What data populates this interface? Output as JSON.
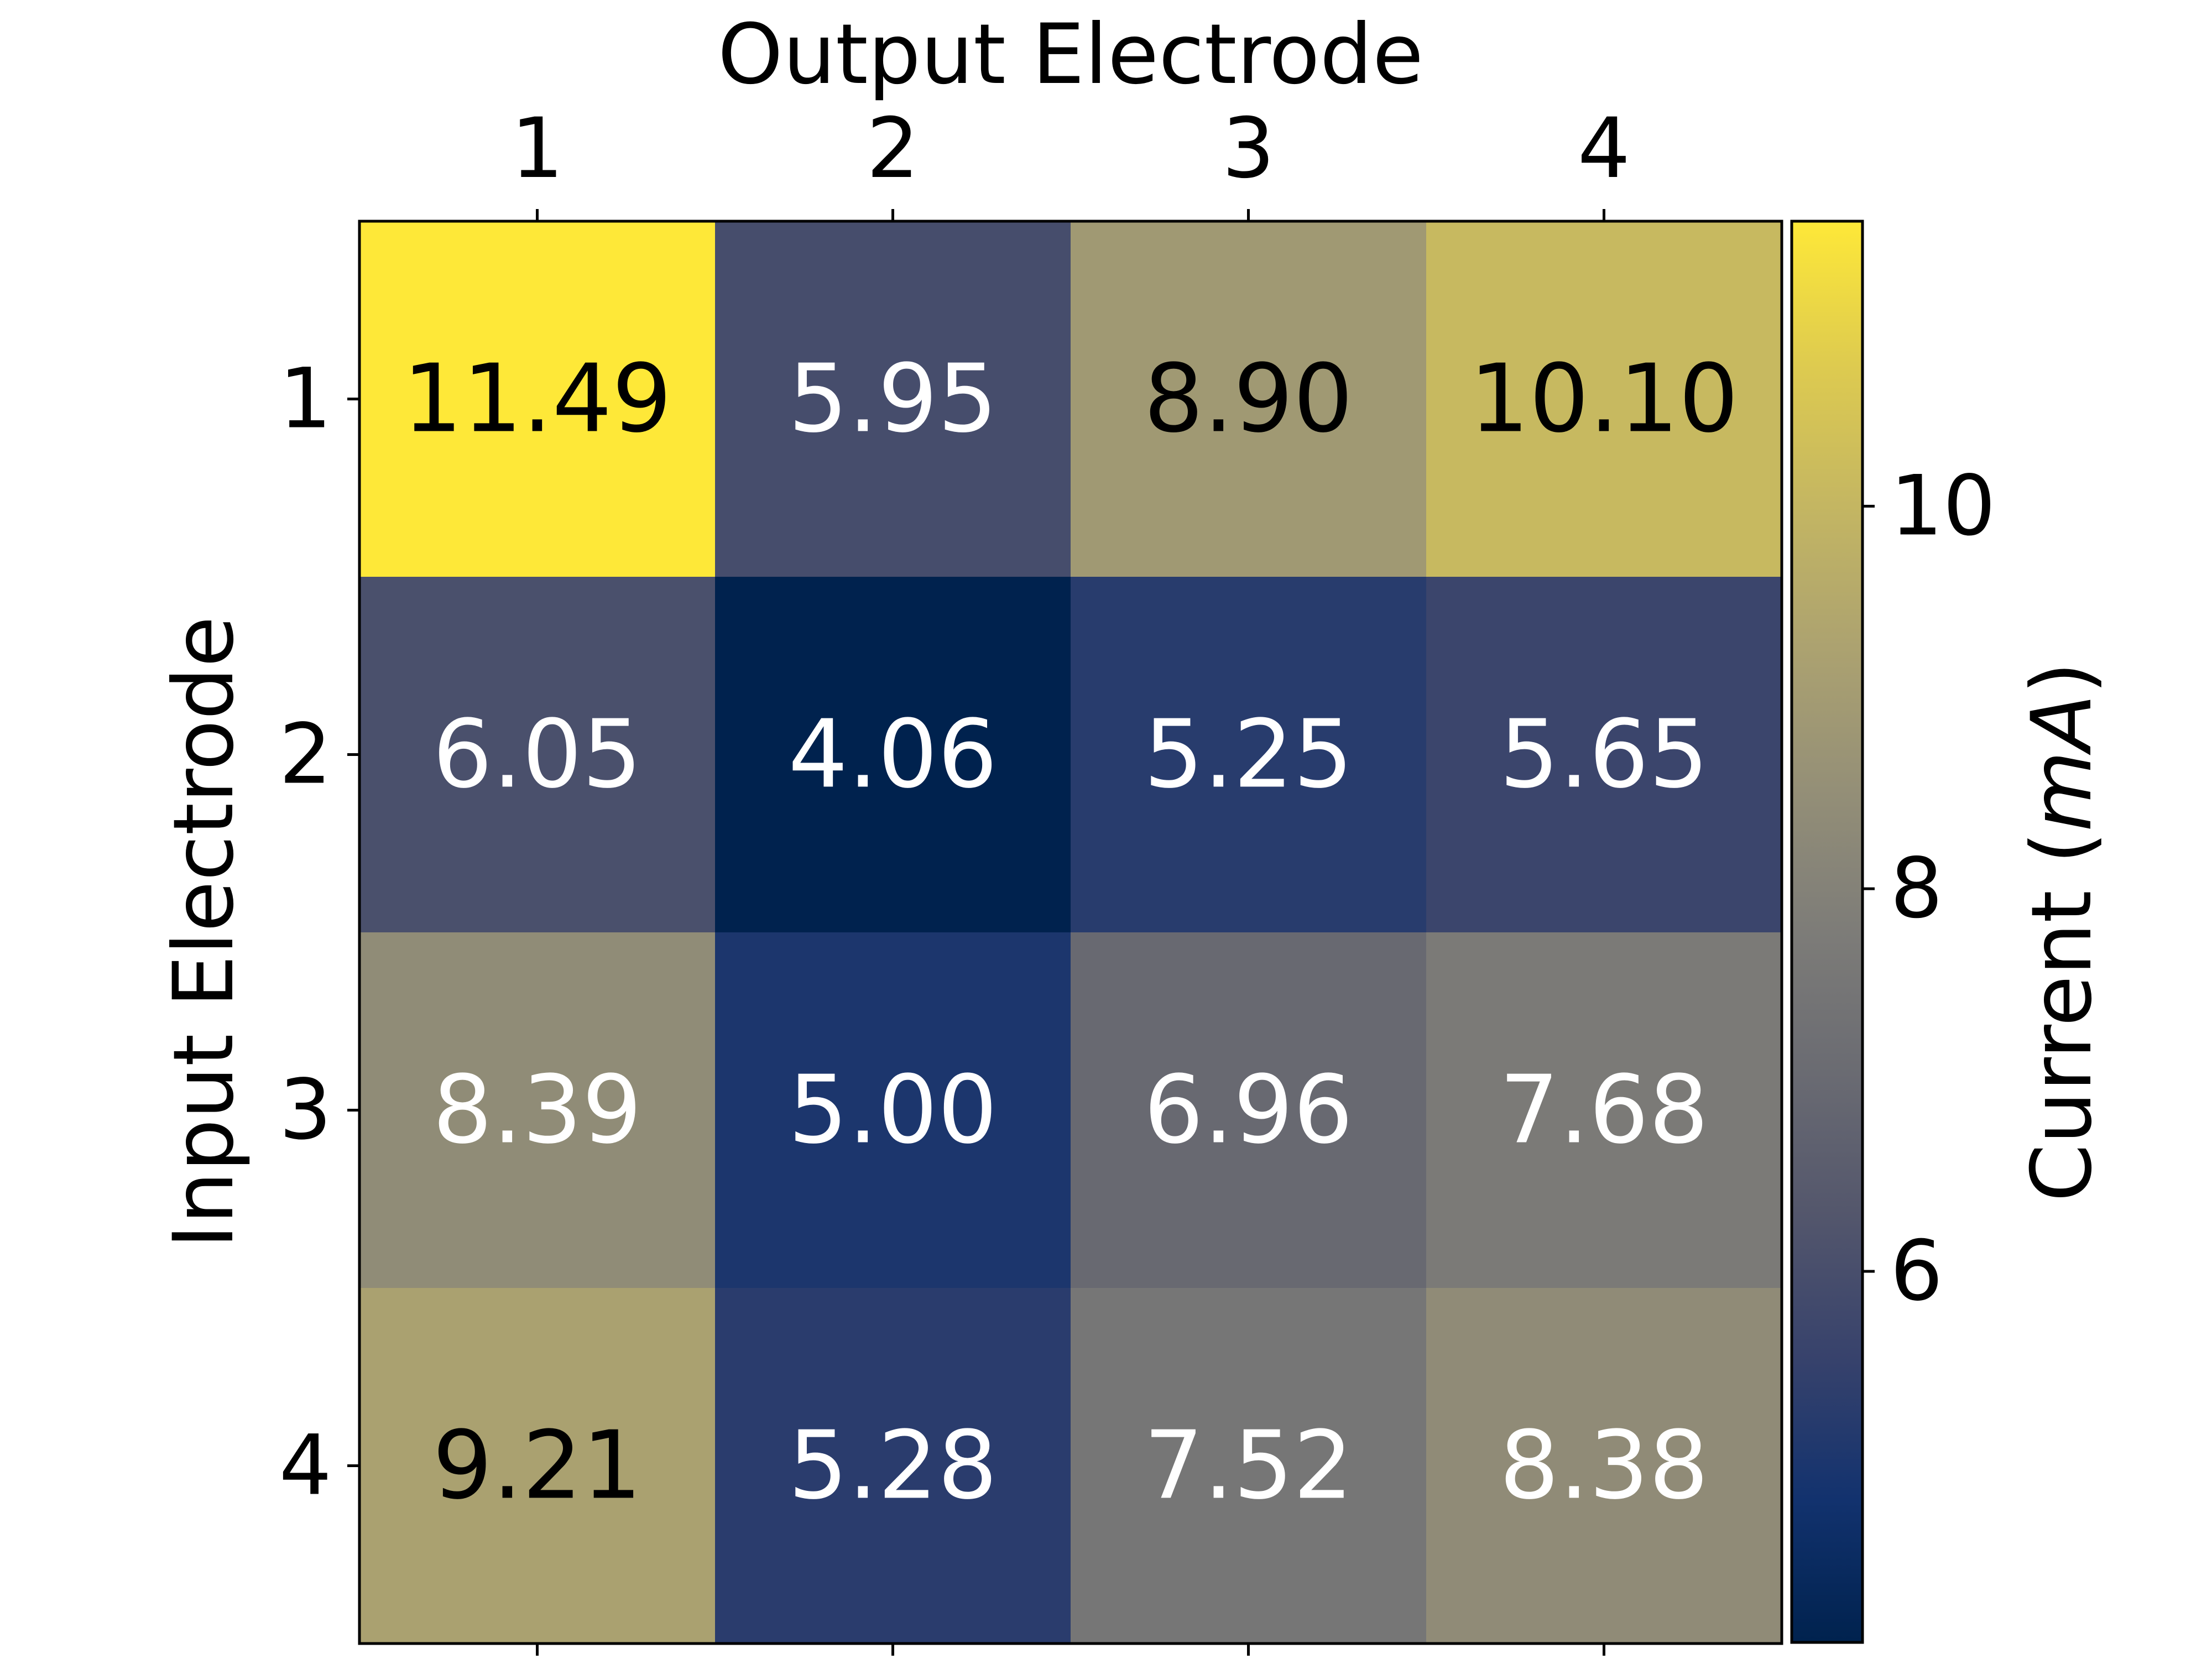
{
  "chart_data": {
    "type": "heatmap",
    "title": "",
    "xlabel": "Output Electrode",
    "ylabel": "Input Electrode",
    "x_categories": [
      "1",
      "2",
      "3",
      "4"
    ],
    "y_categories": [
      "1",
      "2",
      "3",
      "4"
    ],
    "values": [
      [
        11.49,
        5.95,
        8.9,
        10.1
      ],
      [
        6.05,
        4.06,
        5.25,
        5.65
      ],
      [
        8.39,
        5.0,
        6.96,
        7.68
      ],
      [
        9.21,
        5.28,
        7.52,
        8.38
      ]
    ],
    "cell_labels": [
      [
        "11.49",
        "5.95",
        "8.90",
        "10.10"
      ],
      [
        "6.05",
        "4.06",
        "5.25",
        "5.65"
      ],
      [
        "8.39",
        "5.00",
        "6.96",
        "7.68"
      ],
      [
        "9.21",
        "5.28",
        "7.52",
        "8.38"
      ]
    ],
    "colormap": "cividis",
    "color_range": [
      4.06,
      11.49
    ],
    "label_text_colors": {
      "dark": "#000000",
      "light": "#ffffff"
    },
    "x_tick_position": "top",
    "colorbar": {
      "label_prefix": "Current (",
      "label_unit": "mA",
      "label_suffix": ")",
      "ticks": [
        "6",
        "8",
        "10"
      ],
      "tick_values": [
        6,
        8,
        10
      ]
    },
    "grid": false
  }
}
